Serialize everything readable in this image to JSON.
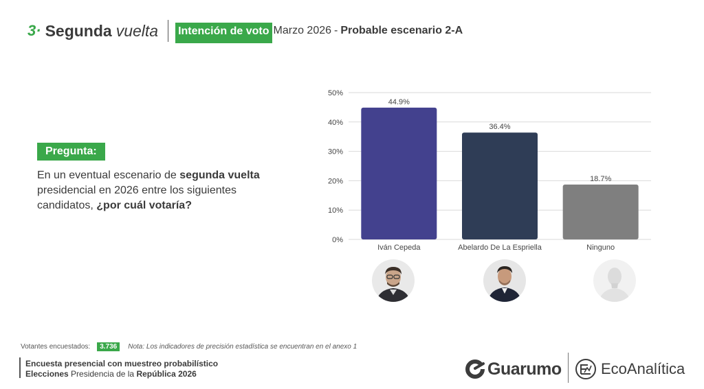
{
  "header": {
    "section_number": "3·",
    "section_title": "Segunda",
    "section_title_italic": "vuelta",
    "topic": "Intención de voto",
    "date": "Marzo  2026",
    "separator": "-",
    "scenario": "Probable escenario 2-A"
  },
  "question": {
    "label": "Pregunta:",
    "text_1": "En un eventual escenario de ",
    "text_bold_1": "segunda vuelta",
    "text_2": " presidencial en 2026 entre los siguientes candidatos, ",
    "text_bold_2": "¿por cuál votaría?"
  },
  "chart_data": {
    "type": "bar",
    "categories": [
      "Iván Cepeda",
      "Abelardo De La Espriella",
      "Ninguno"
    ],
    "values": [
      44.9,
      36.4,
      18.7
    ],
    "value_labels": [
      "44.9%",
      "36.4%",
      "18.7%"
    ],
    "colors": [
      "#43418e",
      "#2f3d56",
      "#7f7f7f"
    ],
    "y_ticks": [
      "0%",
      "10%",
      "20%",
      "30%",
      "40%",
      "50%"
    ],
    "ylim": [
      0,
      50
    ],
    "grid": true
  },
  "footer": {
    "sample_label": "Votantes encuestados:",
    "sample_count": "3.736",
    "note": "Nota: Los indicadores de precisión estadística se encuentran en el anexo 1",
    "line1": "Encuesta presencial con muestreo probabilístico",
    "line2_bold_1": "Elecciones",
    "line2_1": " Presidencia de la ",
    "line2_bold_2": "República 2026"
  },
  "logos": {
    "guarumo": "Guarumo",
    "ecoanalitica": "EcoAnalítica"
  },
  "icons": {
    "guarumo_logo": "guarumo-logo-icon",
    "ecoanalitica_logo": "ecoanalitica-logo-icon"
  }
}
